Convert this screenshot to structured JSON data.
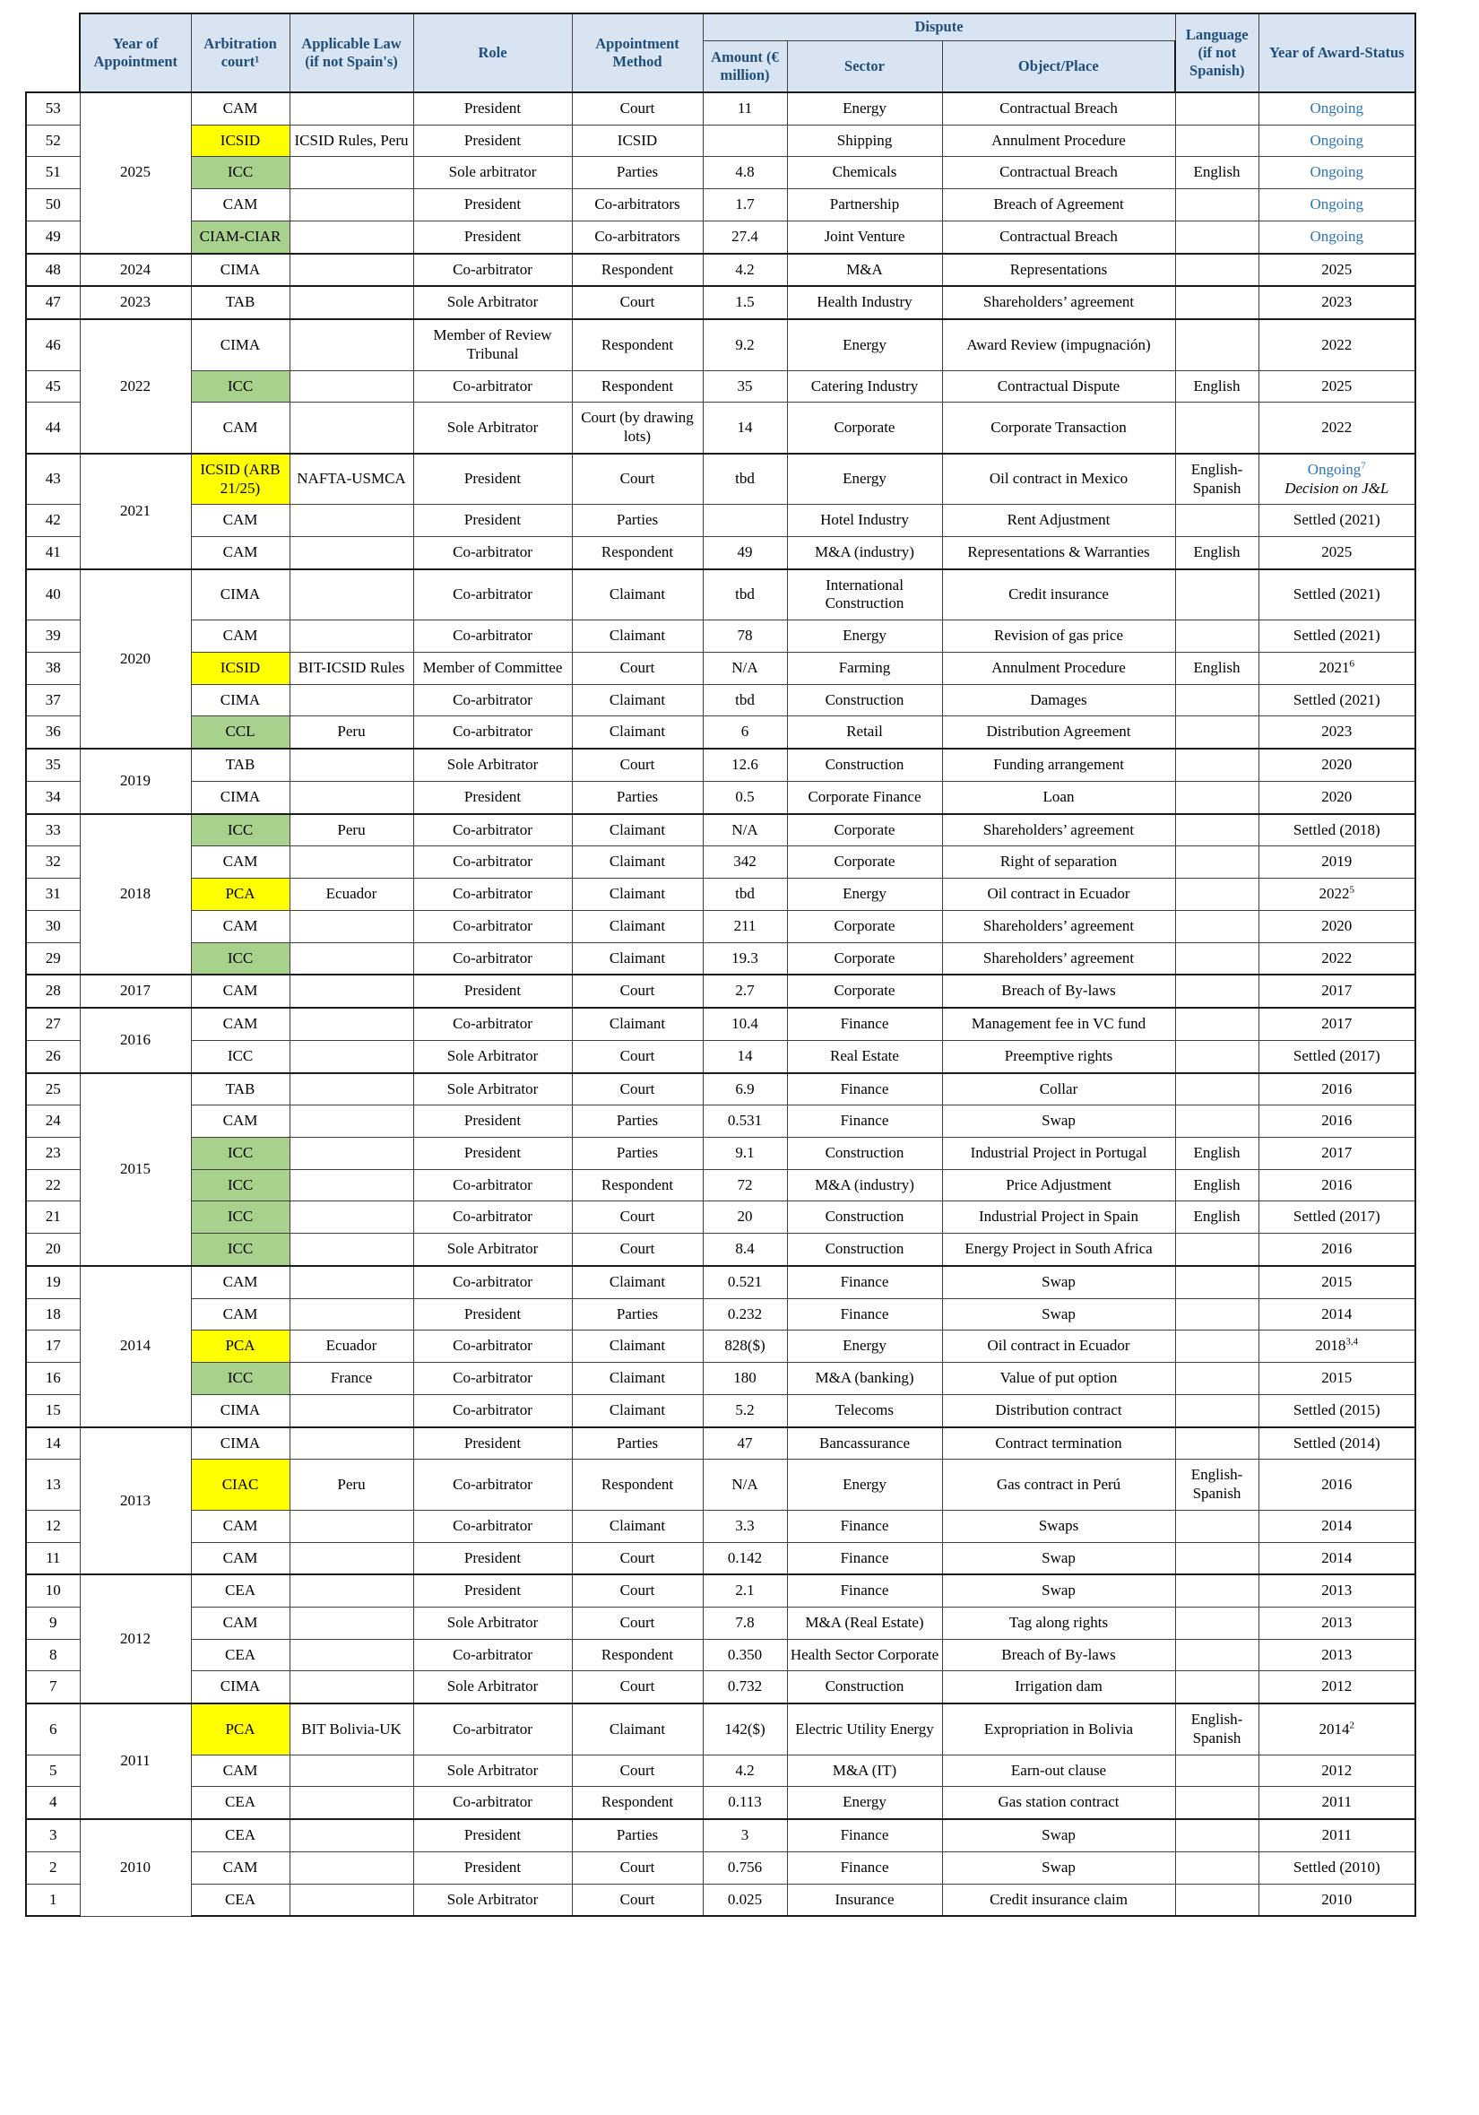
{
  "table": {
    "colors": {
      "header_bg": "#d9e4f2",
      "header_text": "#1f4e79",
      "highlight_yellow": "#ffff00",
      "highlight_green": "#a9d18e",
      "ongoing_blue": "#2e75b6",
      "border": "#404040"
    },
    "headers": {
      "year": "Year of Appointment",
      "court": "Arbitration court¹",
      "law": "Applicable Law (if not Spain's)",
      "role": "Role",
      "method": "Appointment Method",
      "dispute": "Dispute",
      "amount": "Amount (€ million)",
      "sector": "Sector",
      "object": "Object/Place",
      "language": "Language (if not Spanish)",
      "award": "Year of Award-Status"
    },
    "rows": [
      {
        "n": "53",
        "year": "2025",
        "court": "CAM",
        "hl": "",
        "law": "",
        "role": "President",
        "method": "Court",
        "amount": "11",
        "sector": "Energy",
        "object": "Contractual Breach",
        "lang": "",
        "award": "Ongoing",
        "ongoing": true
      },
      {
        "n": "52",
        "year": "2025",
        "court": "ICSID",
        "hl": "y",
        "law": "ICSID Rules, Peru",
        "role": "President",
        "method": "ICSID",
        "amount": "",
        "sector": "Shipping",
        "object": "Annulment Procedure",
        "lang": "",
        "award": "Ongoing",
        "ongoing": true
      },
      {
        "n": "51",
        "year": "2025",
        "court": "ICC",
        "hl": "g",
        "law": "",
        "role": "Sole arbitrator",
        "method": "Parties",
        "amount": "4.8",
        "sector": "Chemicals",
        "object": "Contractual Breach",
        "lang": "English",
        "award": "Ongoing",
        "ongoing": true
      },
      {
        "n": "50",
        "year": "2025",
        "court": "CAM",
        "hl": "",
        "law": "",
        "role": "President",
        "method": "Co-arbitrators",
        "amount": "1.7",
        "sector": "Partnership",
        "object": "Breach of Agreement",
        "lang": "",
        "award": "Ongoing",
        "ongoing": true
      },
      {
        "n": "49",
        "year": "2025",
        "court": "CIAM-CIAR",
        "hl": "g",
        "law": "",
        "role": "President",
        "method": "Co-arbitrators",
        "amount": "27.4",
        "sector": "Joint Venture",
        "object": "Contractual Breach",
        "lang": "",
        "award": "Ongoing",
        "ongoing": true
      },
      {
        "n": "48",
        "year": "2024",
        "court": "CIMA",
        "hl": "",
        "law": "",
        "role": "Co-arbitrator",
        "method": "Respondent",
        "amount": "4.2",
        "sector": "M&A",
        "object": "Representations",
        "lang": "",
        "award": "2025"
      },
      {
        "n": "47",
        "year": "2023",
        "court": "TAB",
        "hl": "",
        "law": "",
        "role": "Sole Arbitrator",
        "method": "Court",
        "amount": "1.5",
        "sector": "Health Industry",
        "object": "Shareholders’ agreement",
        "lang": "",
        "award": "2023"
      },
      {
        "n": "46",
        "year": "2022",
        "court": "CIMA",
        "hl": "",
        "law": "",
        "role": "Member of Review Tribunal",
        "method": "Respondent",
        "amount": "9.2",
        "sector": "Energy",
        "object": "Award Review (impugnación)",
        "lang": "",
        "award": "2022"
      },
      {
        "n": "45",
        "year": "2022",
        "court": "ICC",
        "hl": "g",
        "law": "",
        "role": "Co-arbitrator",
        "method": "Respondent",
        "amount": "35",
        "sector": "Catering Industry",
        "object": "Contractual Dispute",
        "lang": "English",
        "award": "2025"
      },
      {
        "n": "44",
        "year": "2022",
        "court": "CAM",
        "hl": "",
        "law": "",
        "role": "Sole Arbitrator",
        "method": "Court (by drawing lots)",
        "amount": "14",
        "sector": "Corporate",
        "object": "Corporate Transaction",
        "lang": "",
        "award": "2022"
      },
      {
        "n": "43",
        "year": "2021",
        "court": "ICSID (ARB 21/25)",
        "hl": "y",
        "law": "NAFTA-USMCA",
        "role": "President",
        "method": "Court",
        "amount": "tbd",
        "sector": "Energy",
        "object": "Oil contract in Mexico",
        "lang": "English-Spanish",
        "award": "Ongoing",
        "sup": "7",
        "note": "Decision on J&L",
        "ongoing": true
      },
      {
        "n": "42",
        "year": "2021",
        "court": "CAM",
        "hl": "",
        "law": "",
        "role": "President",
        "method": "Parties",
        "amount": "",
        "sector": "Hotel Industry",
        "object": "Rent Adjustment",
        "lang": "",
        "award": "Settled (2021)"
      },
      {
        "n": "41",
        "year": "2021",
        "court": "CAM",
        "hl": "",
        "law": "",
        "role": "Co-arbitrator",
        "method": "Respondent",
        "amount": "49",
        "sector": "M&A (industry)",
        "object": "Representations & Warranties",
        "lang": "English",
        "award": "2025"
      },
      {
        "n": "40",
        "year": "2020",
        "court": "CIMA",
        "hl": "",
        "law": "",
        "role": "Co-arbitrator",
        "method": "Claimant",
        "amount": "tbd",
        "sector": "International Construction",
        "object": "Credit insurance",
        "lang": "",
        "award": "Settled (2021)"
      },
      {
        "n": "39",
        "year": "2020",
        "court": "CAM",
        "hl": "",
        "law": "",
        "role": "Co-arbitrator",
        "method": "Claimant",
        "amount": "78",
        "sector": "Energy",
        "object": "Revision of gas price",
        "lang": "",
        "award": "Settled (2021)"
      },
      {
        "n": "38",
        "year": "2020",
        "court": "ICSID",
        "hl": "y",
        "law": "BIT-ICSID Rules",
        "role": "Member of Committee",
        "method": "Court",
        "amount": "N/A",
        "sector": "Farming",
        "object": "Annulment Procedure",
        "lang": "English",
        "award": "2021",
        "sup": "6"
      },
      {
        "n": "37",
        "year": "2020",
        "court": "CIMA",
        "hl": "",
        "law": "",
        "role": "Co-arbitrator",
        "method": "Claimant",
        "amount": "tbd",
        "sector": "Construction",
        "object": "Damages",
        "lang": "",
        "award": "Settled (2021)"
      },
      {
        "n": "36",
        "year": "2020",
        "court": "CCL",
        "hl": "g",
        "law": "Peru",
        "role": "Co-arbitrator",
        "method": "Claimant",
        "amount": "6",
        "sector": "Retail",
        "object": "Distribution Agreement",
        "lang": "",
        "award": "2023"
      },
      {
        "n": "35",
        "year": "2019",
        "court": "TAB",
        "hl": "",
        "law": "",
        "role": "Sole Arbitrator",
        "method": "Court",
        "amount": "12.6",
        "sector": "Construction",
        "object": "Funding arrangement",
        "lang": "",
        "award": "2020"
      },
      {
        "n": "34",
        "year": "2019",
        "court": "CIMA",
        "hl": "",
        "law": "",
        "role": "President",
        "method": "Parties",
        "amount": "0.5",
        "sector": "Corporate Finance",
        "object": "Loan",
        "lang": "",
        "award": "2020"
      },
      {
        "n": "33",
        "year": "2018",
        "court": "ICC",
        "hl": "g",
        "law": "Peru",
        "role": "Co-arbitrator",
        "method": "Claimant",
        "amount": "N/A",
        "sector": "Corporate",
        "object": "Shareholders’ agreement",
        "lang": "",
        "award": "Settled (2018)"
      },
      {
        "n": "32",
        "year": "2018",
        "court": "CAM",
        "hl": "",
        "law": "",
        "role": "Co-arbitrator",
        "method": "Claimant",
        "amount": "342",
        "sector": "Corporate",
        "object": "Right of separation",
        "lang": "",
        "award": "2019"
      },
      {
        "n": "31",
        "year": "2018",
        "court": "PCA",
        "hl": "y",
        "law": "Ecuador",
        "role": "Co-arbitrator",
        "method": "Claimant",
        "amount": "tbd",
        "sector": "Energy",
        "object": "Oil contract in Ecuador",
        "lang": "",
        "award": "2022",
        "sup": "5"
      },
      {
        "n": "30",
        "year": "2018",
        "court": "CAM",
        "hl": "",
        "law": "",
        "role": "Co-arbitrator",
        "method": "Claimant",
        "amount": "211",
        "sector": "Corporate",
        "object": "Shareholders’ agreement",
        "lang": "",
        "award": "2020"
      },
      {
        "n": "29",
        "year": "2018",
        "court": "ICC",
        "hl": "g",
        "law": "",
        "role": "Co-arbitrator",
        "method": "Claimant",
        "amount": "19.3",
        "sector": "Corporate",
        "object": "Shareholders’ agreement",
        "lang": "",
        "award": "2022"
      },
      {
        "n": "28",
        "year": "2017",
        "court": "CAM",
        "hl": "",
        "law": "",
        "role": "President",
        "method": "Court",
        "amount": "2.7",
        "sector": "Corporate",
        "object": "Breach of By-laws",
        "lang": "",
        "award": "2017"
      },
      {
        "n": "27",
        "year": "2016",
        "court": "CAM",
        "hl": "",
        "law": "",
        "role": "Co-arbitrator",
        "method": "Claimant",
        "amount": "10.4",
        "sector": "Finance",
        "object": "Management fee in VC fund",
        "lang": "",
        "award": "2017"
      },
      {
        "n": "26",
        "year": "2016",
        "court": "ICC",
        "hl": "",
        "law": "",
        "role": "Sole Arbitrator",
        "method": "Court",
        "amount": "14",
        "sector": "Real Estate",
        "object": "Preemptive rights",
        "lang": "",
        "award": "Settled (2017)"
      },
      {
        "n": "25",
        "year": "2015",
        "court": "TAB",
        "hl": "",
        "law": "",
        "role": "Sole Arbitrator",
        "method": "Court",
        "amount": "6.9",
        "sector": "Finance",
        "object": "Collar",
        "lang": "",
        "award": "2016"
      },
      {
        "n": "24",
        "year": "2015",
        "court": "CAM",
        "hl": "",
        "law": "",
        "role": "President",
        "method": "Parties",
        "amount": "0.531",
        "sector": "Finance",
        "object": "Swap",
        "lang": "",
        "award": "2016"
      },
      {
        "n": "23",
        "year": "2015",
        "court": "ICC",
        "hl": "g",
        "law": "",
        "role": "President",
        "method": "Parties",
        "amount": "9.1",
        "sector": "Construction",
        "object": "Industrial Project in Portugal",
        "lang": "English",
        "award": "2017"
      },
      {
        "n": "22",
        "year": "2015",
        "court": "ICC",
        "hl": "g",
        "law": "",
        "role": "Co-arbitrator",
        "method": "Respondent",
        "amount": "72",
        "sector": "M&A (industry)",
        "object": "Price Adjustment",
        "lang": "English",
        "award": "2016"
      },
      {
        "n": "21",
        "year": "2015",
        "court": "ICC",
        "hl": "g",
        "law": "",
        "role": "Co-arbitrator",
        "method": "Court",
        "amount": "20",
        "sector": "Construction",
        "object": "Industrial Project in Spain",
        "lang": "English",
        "award": "Settled (2017)"
      },
      {
        "n": "20",
        "year": "2015",
        "court": "ICC",
        "hl": "g",
        "law": "",
        "role": "Sole Arbitrator",
        "method": "Court",
        "amount": "8.4",
        "sector": "Construction",
        "object": "Energy Project in South Africa",
        "lang": "",
        "award": "2016"
      },
      {
        "n": "19",
        "year": "2014",
        "court": "CAM",
        "hl": "",
        "law": "",
        "role": "Co-arbitrator",
        "method": "Claimant",
        "amount": "0.521",
        "sector": "Finance",
        "object": "Swap",
        "lang": "",
        "award": "2015"
      },
      {
        "n": "18",
        "year": "2014",
        "court": "CAM",
        "hl": "",
        "law": "",
        "role": "President",
        "method": "Parties",
        "amount": "0.232",
        "sector": "Finance",
        "object": "Swap",
        "lang": "",
        "award": "2014"
      },
      {
        "n": "17",
        "year": "2014",
        "court": "PCA",
        "hl": "y",
        "law": "Ecuador",
        "role": "Co-arbitrator",
        "method": "Claimant",
        "amount": "828($)",
        "sector": "Energy",
        "object": "Oil contract in Ecuador",
        "lang": "",
        "award": "2018",
        "sup": "3,4"
      },
      {
        "n": "16",
        "year": "2014",
        "court": "ICC",
        "hl": "g",
        "law": "France",
        "role": "Co-arbitrator",
        "method": "Claimant",
        "amount": "180",
        "sector": "M&A (banking)",
        "object": "Value of put option",
        "lang": "",
        "award": "2015"
      },
      {
        "n": "15",
        "year": "2014",
        "court": "CIMA",
        "hl": "",
        "law": "",
        "role": "Co-arbitrator",
        "method": "Claimant",
        "amount": "5.2",
        "sector": "Telecoms",
        "object": "Distribution contract",
        "lang": "",
        "award": "Settled (2015)"
      },
      {
        "n": "14",
        "year": "2013",
        "court": "CIMA",
        "hl": "",
        "law": "",
        "role": "President",
        "method": "Parties",
        "amount": "47",
        "sector": "Bancassurance",
        "object": "Contract termination",
        "lang": "",
        "award": "Settled (2014)"
      },
      {
        "n": "13",
        "year": "2013",
        "court": "CIAC",
        "hl": "y",
        "law": "Peru",
        "role": "Co-arbitrator",
        "method": "Respondent",
        "amount": "N/A",
        "sector": "Energy",
        "object": "Gas contract in Perú",
        "lang": "English-Spanish",
        "award": "2016"
      },
      {
        "n": "12",
        "year": "2013",
        "court": "CAM",
        "hl": "",
        "law": "",
        "role": "Co-arbitrator",
        "method": "Claimant",
        "amount": "3.3",
        "sector": "Finance",
        "object": "Swaps",
        "lang": "",
        "award": "2014"
      },
      {
        "n": "11",
        "year": "2013",
        "court": "CAM",
        "hl": "",
        "law": "",
        "role": "President",
        "method": "Court",
        "amount": "0.142",
        "sector": "Finance",
        "object": "Swap",
        "lang": "",
        "award": "2014"
      },
      {
        "n": "10",
        "year": "2012",
        "court": "CEA",
        "hl": "",
        "law": "",
        "role": "President",
        "method": "Court",
        "amount": "2.1",
        "sector": "Finance",
        "object": "Swap",
        "lang": "",
        "award": "2013"
      },
      {
        "n": "9",
        "year": "2012",
        "court": "CAM",
        "hl": "",
        "law": "",
        "role": "Sole Arbitrator",
        "method": "Court",
        "amount": "7.8",
        "sector": "M&A (Real Estate)",
        "object": "Tag along rights",
        "lang": "",
        "award": "2013"
      },
      {
        "n": "8",
        "year": "2012",
        "court": "CEA",
        "hl": "",
        "law": "",
        "role": "Co-arbitrator",
        "method": "Respondent",
        "amount": "0.350",
        "sector": "Health Sector Corporate",
        "object": "Breach of By-laws",
        "lang": "",
        "award": "2013"
      },
      {
        "n": "7",
        "year": "2012",
        "court": "CIMA",
        "hl": "",
        "law": "",
        "role": "Sole Arbitrator",
        "method": "Court",
        "amount": "0.732",
        "sector": "Construction",
        "object": "Irrigation dam",
        "lang": "",
        "award": "2012"
      },
      {
        "n": "6",
        "year": "2011",
        "court": "PCA",
        "hl": "y",
        "law": "BIT Bolivia-UK",
        "role": "Co-arbitrator",
        "method": "Claimant",
        "amount": "142($)",
        "sector": "Electric Utility Energy",
        "object": "Expropriation in Bolivia",
        "lang": "English-Spanish",
        "award": "2014",
        "sup": "2"
      },
      {
        "n": "5",
        "year": "2011",
        "court": "CAM",
        "hl": "",
        "law": "",
        "role": "Sole Arbitrator",
        "method": "Court",
        "amount": "4.2",
        "sector": "M&A (IT)",
        "object": "Earn-out clause",
        "lang": "",
        "award": "2012"
      },
      {
        "n": "4",
        "year": "2011",
        "court": "CEA",
        "hl": "",
        "law": "",
        "role": "Co-arbitrator",
        "method": "Respondent",
        "amount": "0.113",
        "sector": "Energy",
        "object": "Gas station contract",
        "lang": "",
        "award": "2011"
      },
      {
        "n": "3",
        "year": "2010",
        "court": "CEA",
        "hl": "",
        "law": "",
        "role": "President",
        "method": "Parties",
        "amount": "3",
        "sector": "Finance",
        "object": "Swap",
        "lang": "",
        "award": "2011"
      },
      {
        "n": "2",
        "year": "2010",
        "court": "CAM",
        "hl": "",
        "law": "",
        "role": "President",
        "method": "Court",
        "amount": "0.756",
        "sector": "Finance",
        "object": "Swap",
        "lang": "",
        "award": "Settled (2010)"
      },
      {
        "n": "1",
        "year": "2010",
        "court": "CEA",
        "hl": "",
        "law": "",
        "role": "Sole Arbitrator",
        "method": "Court",
        "amount": "0.025",
        "sector": "Insurance",
        "object": "Credit insurance claim",
        "lang": "",
        "award": "2010"
      }
    ]
  }
}
